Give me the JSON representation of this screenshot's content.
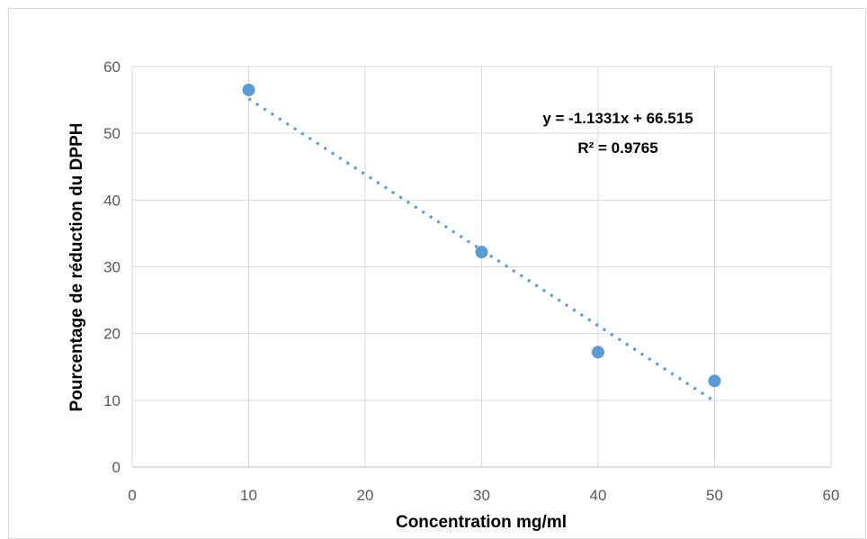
{
  "chart_data": {
    "type": "scatter",
    "title": "",
    "xlabel": "Concentration mg/ml",
    "ylabel": "Pourcentage de réduction du DPPH",
    "xlim": [
      0,
      60
    ],
    "ylim": [
      0,
      60
    ],
    "xticks": [
      0,
      10,
      20,
      30,
      40,
      50,
      60
    ],
    "yticks": [
      0,
      10,
      20,
      30,
      40,
      50,
      60
    ],
    "grid": true,
    "legend": "none",
    "series": [
      {
        "x": [
          10,
          30,
          40,
          50
        ],
        "y": [
          56.5,
          32.2,
          17.2,
          12.9
        ],
        "color": "#5b9bd5"
      }
    ],
    "trendline": {
      "type": "linear",
      "style": "dotted",
      "color": "#5b9bd5",
      "slope": -1.1331,
      "intercept": 66.515,
      "x_range": [
        10,
        50
      ],
      "equation_label": "y = -1.1331x + 66.515",
      "r2_label": "R² = 0.9765"
    }
  }
}
